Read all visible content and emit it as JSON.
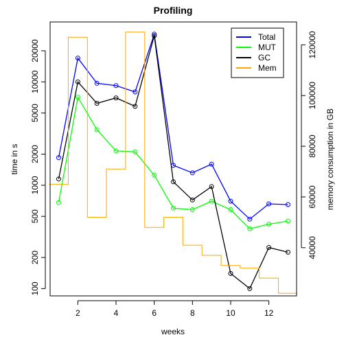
{
  "chart_data": {
    "type": "line",
    "title": "Profiling",
    "xlabel": "weeks",
    "ylabel": "time in s",
    "y2label": "memory consumption in GB",
    "x": [
      1,
      2,
      3,
      4,
      5,
      6,
      7,
      8,
      9,
      10,
      11,
      12,
      13
    ],
    "xlim": [
      0.55,
      13.45
    ],
    "ylim": [
      85,
      38000
    ],
    "yscale": "log",
    "y2lim": [
      21000,
      129000
    ],
    "x_ticks": [
      2,
      4,
      6,
      8,
      10,
      12
    ],
    "y_ticks": [
      100,
      200,
      500,
      1000,
      2000,
      5000,
      10000,
      20000
    ],
    "y2_ticks": [
      40000,
      60000,
      80000,
      100000,
      120000
    ],
    "legend_position": "top-right",
    "series": [
      {
        "name": "Total",
        "color": "#0000ff",
        "axis": "left",
        "step": false,
        "values": [
          1850,
          17000,
          9700,
          9200,
          8000,
          29000,
          1560,
          1320,
          1600,
          700,
          470,
          660,
          650
        ]
      },
      {
        "name": "MUT",
        "color": "#00ff00",
        "axis": "left",
        "step": false,
        "values": [
          680,
          7100,
          3450,
          2150,
          2100,
          1250,
          600,
          580,
          700,
          580,
          380,
          420,
          450
        ]
      },
      {
        "name": "GC",
        "color": "#000000",
        "axis": "left",
        "step": false,
        "values": [
          1150,
          10000,
          6200,
          7000,
          5800,
          28000,
          1080,
          720,
          970,
          140,
          100,
          250,
          225
        ]
      },
      {
        "name": "Mem",
        "color": "#ffa500",
        "axis": "right",
        "step": true,
        "values": [
          65000,
          123000,
          52000,
          71000,
          125000,
          48000,
          52000,
          41000,
          37000,
          33000,
          32000,
          28000,
          22000
        ]
      }
    ]
  }
}
